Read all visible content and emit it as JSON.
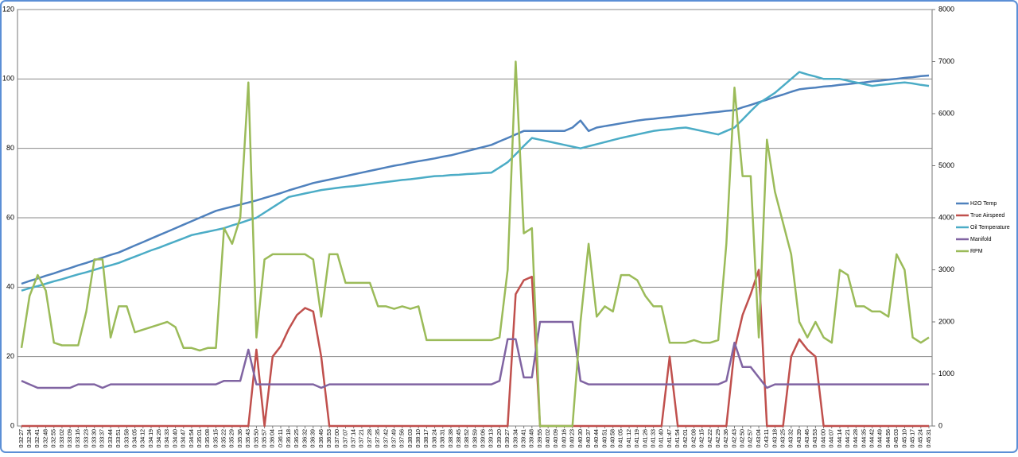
{
  "chart_data": {
    "type": "line",
    "categories": [
      "0:32:27",
      "0:32:34",
      "0:32:41",
      "0:32:48",
      "0:32:55",
      "0:33:02",
      "0:33:09",
      "0:33:16",
      "0:33:23",
      "0:33:30",
      "0:33:37",
      "0:33:44",
      "0:33:51",
      "0:33:58",
      "0:34:05",
      "0:34:12",
      "0:34:19",
      "0:34:26",
      "0:34:33",
      "0:34:40",
      "0:34:47",
      "0:34:54",
      "0:35:01",
      "0:35:08",
      "0:35:15",
      "0:35:22",
      "0:35:29",
      "0:35:36",
      "0:35:43",
      "0:35:50",
      "0:35:57",
      "0:36:04",
      "0:36:11",
      "0:36:18",
      "0:36:25",
      "0:36:32",
      "0:36:39",
      "0:36:46",
      "0:36:53",
      "0:37:00",
      "0:37:07",
      "0:37:14",
      "0:37:21",
      "0:37:28",
      "0:37:35",
      "0:37:42",
      "0:37:49",
      "0:37:56",
      "0:38:03",
      "0:38:10",
      "0:38:17",
      "0:38:24",
      "0:38:31",
      "0:38:38",
      "0:38:45",
      "0:38:52",
      "0:38:59",
      "0:39:06",
      "0:39:13",
      "0:39:20",
      "0:39:27",
      "0:39:34",
      "0:39:41",
      "0:39:48",
      "0:39:55",
      "0:40:02",
      "0:40:09",
      "0:40:16",
      "0:40:23",
      "0:40:30",
      "0:40:37",
      "0:40:44",
      "0:40:51",
      "0:40:58",
      "0:41:05",
      "0:41:12",
      "0:41:19",
      "0:41:26",
      "0:41:33",
      "0:41:40",
      "0:41:47",
      "0:41:54",
      "0:42:01",
      "0:42:08",
      "0:42:15",
      "0:42:22",
      "0:42:29",
      "0:42:36",
      "0:42:43",
      "0:42:50",
      "0:42:57",
      "0:43:04",
      "0:43:11",
      "0:43:18",
      "0:43:25",
      "0:43:32",
      "0:43:39",
      "0:43:46",
      "0:43:53",
      "0:44:00",
      "0:44:07",
      "0:44:14",
      "0:44:21",
      "0:44:28",
      "0:44:35",
      "0:44:42",
      "0:44:49",
      "0:44:56",
      "0:45:03",
      "0:45:10",
      "0:45:17",
      "0:45:24",
      "0:45:31"
    ],
    "series": [
      {
        "name": "H2O Temp",
        "color": "#4f81bd",
        "values": [
          41,
          41.8,
          42.5,
          43.3,
          44,
          44.8,
          45.5,
          46.3,
          47,
          47.8,
          48.5,
          49.3,
          50,
          51,
          52,
          53,
          54,
          55,
          56,
          57,
          58,
          59,
          60,
          61,
          62,
          62.6,
          63.2,
          63.8,
          64.4,
          65,
          65.7,
          66.4,
          67.1,
          67.9,
          68.6,
          69.3,
          70,
          70.5,
          71,
          71.5,
          72,
          72.5,
          73,
          73.5,
          74,
          74.5,
          75,
          75.4,
          75.9,
          76.3,
          76.7,
          77.1,
          77.6,
          78,
          78.6,
          79.2,
          79.8,
          80.4,
          81,
          82,
          83,
          84,
          85,
          85,
          85,
          85,
          85,
          85,
          86,
          88,
          85,
          86,
          86.4,
          86.8,
          87.2,
          87.6,
          88,
          88.3,
          88.5,
          88.8,
          89,
          89.3,
          89.5,
          89.8,
          90,
          90.3,
          90.5,
          90.8,
          91,
          91.8,
          92.5,
          93.3,
          94,
          94.8,
          95.5,
          96.3,
          97,
          97.3,
          97.5,
          97.8,
          98,
          98.3,
          98.5,
          98.8,
          99,
          99.3,
          99.5,
          99.8,
          100,
          100.3,
          100.5,
          100.8,
          101
        ]
      },
      {
        "name": "True Airspeed",
        "color": "#c0504d",
        "values": [
          0,
          0,
          0,
          0,
          0,
          0,
          0,
          0,
          0,
          0,
          0,
          0,
          0,
          0,
          0,
          0,
          0,
          0,
          0,
          0,
          0,
          0,
          0,
          0,
          0,
          0,
          0,
          0,
          0,
          22,
          0,
          20,
          23,
          28,
          32,
          34,
          33,
          20,
          0,
          0,
          0,
          0,
          0,
          0,
          0,
          0,
          0,
          0,
          0,
          0,
          0,
          0,
          0,
          0,
          0,
          0,
          0,
          0,
          0,
          0,
          0,
          38,
          42,
          43,
          0,
          0,
          0,
          0,
          0,
          0,
          0,
          0,
          0,
          0,
          0,
          0,
          0,
          0,
          0,
          0,
          20,
          0,
          0,
          0,
          0,
          0,
          0,
          0,
          22,
          32,
          38,
          45,
          0,
          0,
          0,
          20,
          25,
          22,
          20,
          0,
          0,
          0,
          0,
          0,
          0,
          0,
          0,
          0,
          0,
          0,
          0,
          0,
          0
        ]
      },
      {
        "name": "Oil Temperature",
        "color": "#4bacc6",
        "values": [
          39,
          39.7,
          40.3,
          41,
          41.7,
          42.3,
          43,
          43.7,
          44.3,
          45,
          45.7,
          46.3,
          47,
          47.9,
          48.8,
          49.7,
          50.6,
          51.4,
          52.3,
          53.2,
          54.1,
          55,
          55.5,
          56,
          56.5,
          57,
          57.8,
          58.5,
          59.3,
          60,
          61.5,
          63,
          64.5,
          66,
          66.5,
          67,
          67.5,
          68,
          68.3,
          68.6,
          68.9,
          69.1,
          69.4,
          69.7,
          70,
          70.3,
          70.6,
          70.9,
          71.1,
          71.4,
          71.7,
          72,
          72.1,
          72.3,
          72.4,
          72.6,
          72.7,
          72.9,
          73,
          74.5,
          76,
          78.3,
          80.7,
          83,
          82.5,
          82,
          81.5,
          81,
          80.5,
          80,
          80.6,
          81.2,
          81.8,
          82.4,
          83,
          83.5,
          84,
          84.5,
          85,
          85.3,
          85.5,
          85.8,
          86,
          85.5,
          85,
          84.5,
          84,
          85,
          86,
          88.3,
          90.7,
          93,
          94.5,
          96,
          98,
          100,
          102,
          101.3,
          100.7,
          100,
          100,
          100,
          99.5,
          99,
          98.5,
          98,
          98.3,
          98.5,
          98.8,
          99,
          98.7,
          98.3,
          98
        ]
      },
      {
        "name": "Manifold",
        "color": "#8064a2",
        "values": [
          13,
          12,
          11,
          11,
          11,
          11,
          11,
          12,
          12,
          12,
          11,
          12,
          12,
          12,
          12,
          12,
          12,
          12,
          12,
          12,
          12,
          12,
          12,
          12,
          12,
          13,
          13,
          13,
          22,
          12,
          12,
          12,
          12,
          12,
          12,
          12,
          12,
          11,
          12,
          12,
          12,
          12,
          12,
          12,
          12,
          12,
          12,
          12,
          12,
          12,
          12,
          12,
          12,
          12,
          12,
          12,
          12,
          12,
          12,
          13,
          25,
          25,
          14,
          14,
          30,
          30,
          30,
          30,
          30,
          13,
          12,
          12,
          12,
          12,
          12,
          12,
          12,
          12,
          12,
          12,
          12,
          12,
          12,
          12,
          12,
          12,
          12,
          13,
          24,
          17,
          17,
          14,
          11,
          12,
          12,
          12,
          12,
          12,
          12,
          12,
          12,
          12,
          12,
          12,
          12,
          12,
          12,
          12,
          12,
          12,
          12,
          12,
          12
        ]
      },
      {
        "name": "RPM",
        "color": "#9bbb59",
        "axis": "y2",
        "values": [
          1500,
          2500,
          2900,
          2600,
          1600,
          1550,
          1550,
          1550,
          2200,
          3200,
          3200,
          1700,
          2300,
          2300,
          1800,
          1850,
          1900,
          1950,
          2000,
          1900,
          1500,
          1500,
          1450,
          1500,
          1500,
          3800,
          3500,
          4000,
          6600,
          1700,
          3200,
          3300,
          3300,
          3300,
          3300,
          3300,
          3200,
          2100,
          3300,
          3300,
          2750,
          2750,
          2750,
          2750,
          2300,
          2300,
          2250,
          2300,
          2250,
          2300,
          1650,
          1650,
          1650,
          1650,
          1650,
          1650,
          1650,
          1650,
          1650,
          1700,
          3000,
          7000,
          3700,
          3800,
          0,
          0,
          0,
          0,
          0,
          2000,
          3500,
          2100,
          2300,
          2200,
          2900,
          2900,
          2800,
          2500,
          2300,
          2300,
          1600,
          1600,
          1600,
          1650,
          1600,
          1600,
          1650,
          3500,
          6500,
          4800,
          4800,
          1700,
          5500,
          4500,
          3900,
          3300,
          2000,
          1700,
          2000,
          1700,
          1600,
          3000,
          2900,
          2300,
          2300,
          2200,
          2200,
          2100,
          3300,
          3000,
          1700,
          1600,
          1700
        ]
      }
    ],
    "ylim": [
      0,
      120
    ],
    "yticks": [
      0,
      20,
      40,
      60,
      80,
      100,
      120
    ],
    "y2lim": [
      0,
      8000
    ],
    "y2ticks": [
      0,
      1000,
      2000,
      3000,
      4000,
      5000,
      6000,
      7000,
      8000
    ],
    "grid": true,
    "legend": "right"
  }
}
